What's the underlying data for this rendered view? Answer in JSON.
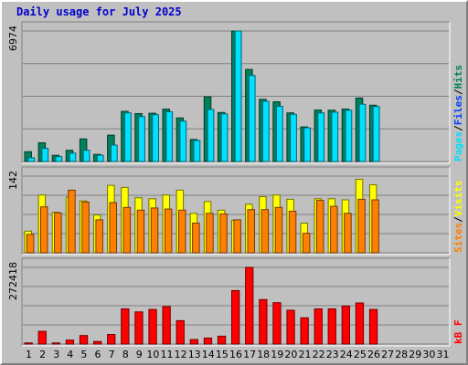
{
  "title": "Daily usage for July 2025",
  "colors": {
    "background": "#c0c0c0",
    "title": "#0000cc",
    "hits": "#00805c",
    "files": "#0040ff",
    "pages": "#00e0ff",
    "visits": "#ffff00",
    "sites": "#ff8000",
    "kbytes": "#ff0000",
    "weekend_label": "#00805c",
    "weekday_label": "#000000"
  },
  "legend": {
    "top": [
      {
        "text": "Pages",
        "color": "#00e0ff"
      },
      {
        "text": "/",
        "color": "#000000"
      },
      {
        "text": "Files",
        "color": "#0040ff"
      },
      {
        "text": "/",
        "color": "#000000"
      },
      {
        "text": "Hits",
        "color": "#00805c"
      }
    ],
    "middle": [
      {
        "text": "Sites",
        "color": "#ff8000"
      },
      {
        "text": "/",
        "color": "#000000"
      },
      {
        "text": "Visits",
        "color": "#ffff00"
      }
    ],
    "bottom": [
      {
        "text": "kB F",
        "color": "#ff0000"
      }
    ]
  },
  "chart_data": {
    "type": "bar",
    "categories": [
      "1",
      "2",
      "3",
      "4",
      "5",
      "6",
      "7",
      "8",
      "9",
      "10",
      "11",
      "12",
      "13",
      "14",
      "15",
      "16",
      "17",
      "18",
      "19",
      "20",
      "21",
      "22",
      "23",
      "24",
      "25",
      "26",
      "27",
      "28",
      "29",
      "30",
      "31"
    ],
    "weekend_days": [
      "5",
      "6",
      "12",
      "13",
      "19",
      "20",
      "26",
      "27"
    ],
    "panels": [
      {
        "name": "hits-files-pages",
        "ymax_label": "6974",
        "ymax": 6974,
        "series": [
          {
            "name": "Hits",
            "color": "#00805c",
            "values": [
              520,
              1000,
              330,
              600,
              1210,
              380,
              1410,
              2680,
              2560,
              2580,
              2800,
              2330,
              1180,
              3460,
              2620,
              6974,
              4920,
              3320,
              3190,
              2600,
              1850,
              2750,
              2740,
              2800,
              3390,
              3010,
              0,
              0,
              0,
              0,
              0
            ]
          },
          {
            "name": "Files",
            "color": "#0040ff",
            "values": [
              180,
              350,
              200,
              300,
              380,
              230,
              600,
              1850,
              1650,
              1670,
              1860,
              1620,
              1080,
              2360,
              1800,
              5820,
              3650,
              2320,
              2150,
              1850,
              1200,
              2100,
              2050,
              2050,
              2450,
              2200,
              0,
              0,
              0,
              0,
              0
            ]
          },
          {
            "name": "Pages",
            "color": "#00e0ff",
            "values": [
              200,
              700,
              260,
              450,
              600,
              330,
              880,
              2600,
              2400,
              2500,
              2660,
              2160,
              1120,
              2780,
              2540,
              6974,
              4600,
              3220,
              2950,
              2520,
              1800,
              2600,
              2640,
              2740,
              3060,
              2940,
              0,
              0,
              0,
              0,
              0
            ]
          }
        ]
      },
      {
        "name": "visits-sites",
        "ymax_label": "142",
        "ymax": 142,
        "series": [
          {
            "name": "Visits",
            "color": "#ffff00",
            "values": [
              40,
              107,
              75,
              103,
              96,
              70,
              125,
              121,
              102,
              100,
              107,
              116,
              73,
              95,
              79,
              60,
              90,
              104,
              107,
              99,
              55,
              100,
              100,
              98,
              136,
              126,
              0,
              0,
              0,
              0,
              0
            ]
          },
          {
            "name": "Sites",
            "color": "#ff8000",
            "values": [
              34,
              85,
              74,
              116,
              94,
              61,
              93,
              84,
              79,
              83,
              81,
              79,
              55,
              73,
              72,
              61,
              80,
              80,
              84,
              77,
              36,
              97,
              86,
              73,
              99,
              98,
              0,
              0,
              0,
              0,
              0
            ]
          }
        ]
      },
      {
        "name": "kbytes",
        "ymax_label": "272418",
        "ymax": 272418,
        "series": [
          {
            "name": "kB F",
            "color": "#ff0000",
            "values": [
              4000,
              45000,
              4000,
              14000,
              30000,
              9000,
              34000,
              125000,
              114000,
              123000,
              133000,
              83000,
              16000,
              21000,
              28000,
              190000,
              272418,
              158000,
              147000,
              120000,
              93000,
              125000,
              125000,
              135000,
              146000,
              123000,
              0,
              0,
              0,
              0,
              0
            ]
          }
        ]
      }
    ],
    "grid": true,
    "legend_placement": "right-vertical"
  }
}
